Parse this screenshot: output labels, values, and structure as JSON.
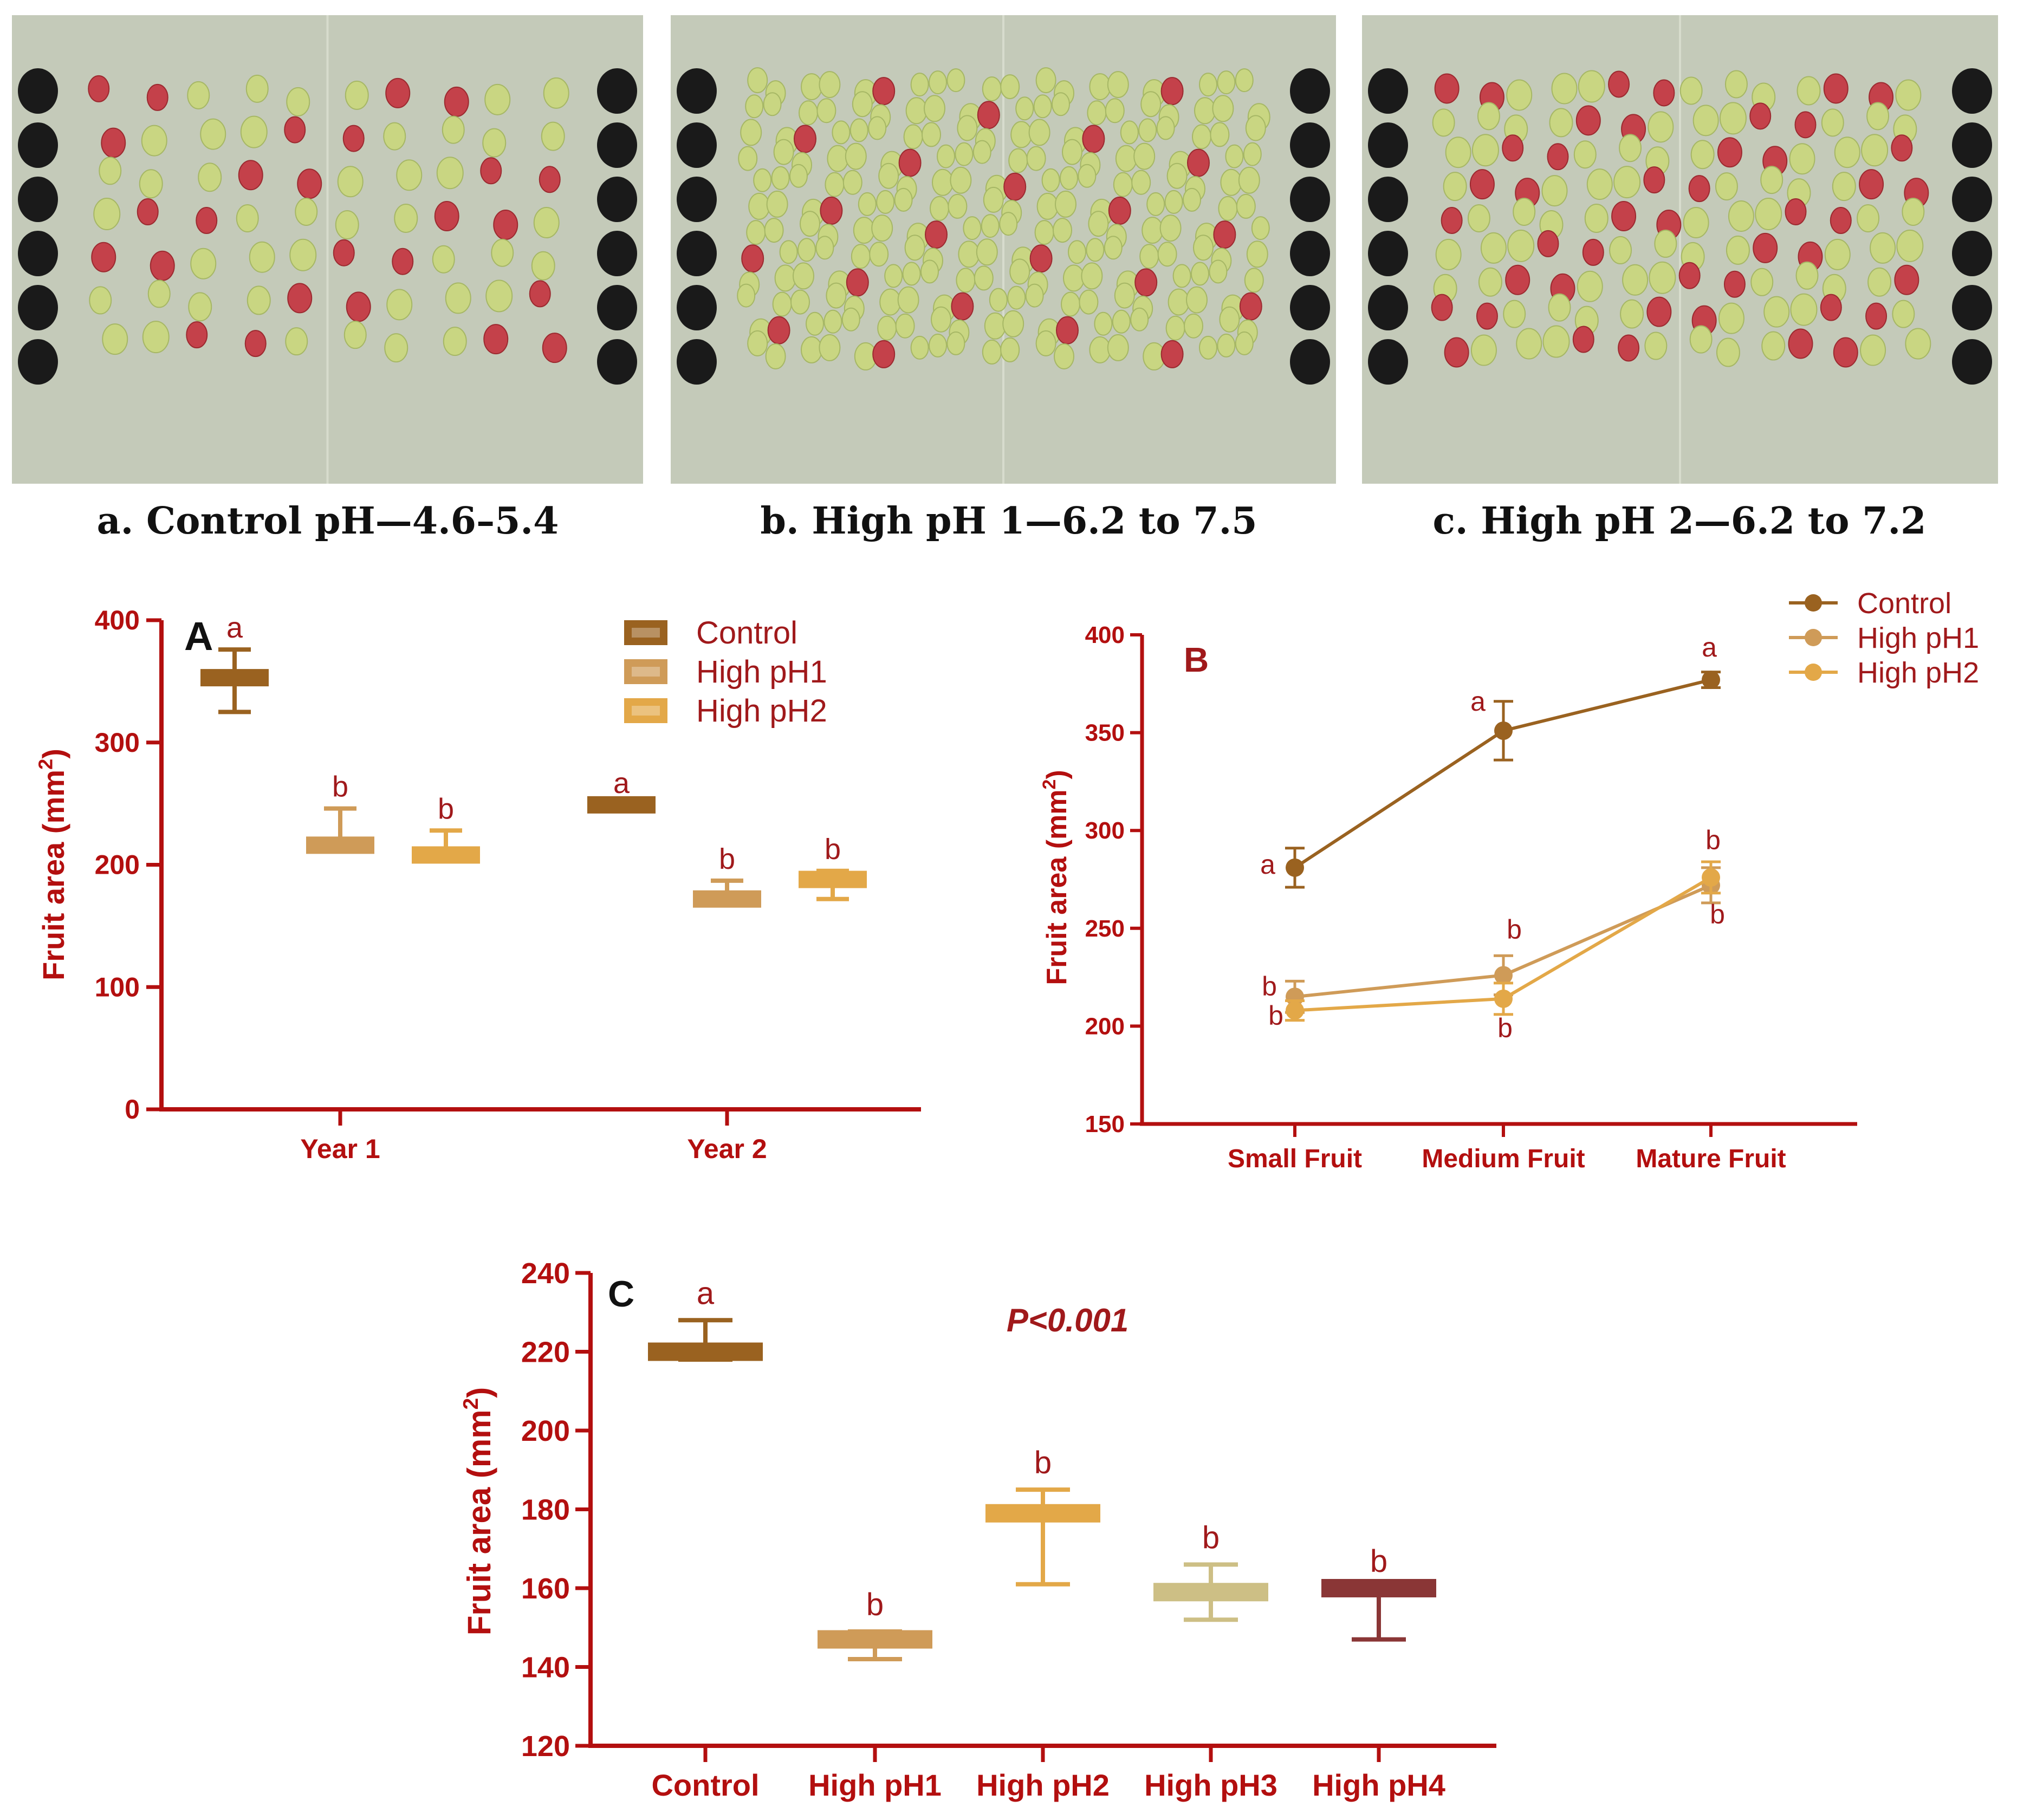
{
  "colors": {
    "axis": "#b30f0f",
    "letter": "#a0191b",
    "panel_letter": "#111111",
    "control": "#9a6220",
    "high_ph1": "#cf9b58",
    "high_ph2": "#e3a848",
    "high_ph3": "#cdbf85",
    "high_ph4": "#8a3636",
    "photo_bg": "#c4cab9",
    "dot": "#1a1a1a"
  },
  "photos": [
    {
      "caption": "a. Control pH—4.6–5.4"
    },
    {
      "caption": "b. High pH 1—6.2 to 7.5"
    },
    {
      "caption": "c. High pH 2—6.2 to 7.2"
    }
  ],
  "chart_data": [
    {
      "panel": "A",
      "type": "bar",
      "ylabel": "Fruit area (mm2)",
      "ylim": [
        0,
        400
      ],
      "yticks": [
        0,
        100,
        200,
        300,
        400
      ],
      "categories": [
        "Year 1",
        "Year  2"
      ],
      "legend_position": "top-right",
      "series": [
        {
          "name": "Control",
          "color": "#9a6220",
          "values": [
            353,
            249
          ],
          "err_high": [
            376,
            249
          ],
          "err_low": [
            325,
            249
          ],
          "letters": [
            "a",
            "a"
          ]
        },
        {
          "name": "High pH1",
          "color": "#cf9b58",
          "values": [
            216,
            172
          ],
          "err_high": [
            246,
            187
          ],
          "err_low": [
            216,
            170
          ],
          "letters": [
            "b",
            "b"
          ]
        },
        {
          "name": "High pH2",
          "color": "#e3a848",
          "values": [
            208,
            188
          ],
          "err_high": [
            228,
            195
          ],
          "err_low": [
            208,
            172
          ],
          "letters": [
            "b",
            "b"
          ]
        }
      ]
    },
    {
      "panel": "B",
      "type": "line",
      "ylabel": "Fruit area (mm2)",
      "ylim": [
        150,
        400
      ],
      "yticks": [
        150,
        200,
        250,
        300,
        350,
        400
      ],
      "categories": [
        "Small Fruit",
        "Medium Fruit",
        "Mature Fruit"
      ],
      "legend_position": "top-right",
      "series": [
        {
          "name": "Control",
          "color": "#9a6220",
          "values": [
            281,
            351,
            377
          ],
          "err": [
            10,
            15,
            4
          ],
          "letters": [
            "a",
            "a",
            "a"
          ]
        },
        {
          "name": "High pH1",
          "color": "#cf9b58",
          "values": [
            215,
            226,
            272
          ],
          "err": [
            8,
            10,
            9
          ],
          "letters": [
            "b",
            "b",
            "b"
          ]
        },
        {
          "name": "High pH2",
          "color": "#e3a848",
          "values": [
            208,
            214,
            276
          ],
          "err": [
            5,
            8,
            8
          ],
          "letters": [
            "b",
            "b",
            "b"
          ]
        }
      ]
    },
    {
      "panel": "C",
      "type": "bar",
      "ylabel": "Fruit area (mm2)",
      "annotation": "P<0.001",
      "ylim": [
        120,
        240
      ],
      "yticks": [
        120,
        140,
        160,
        180,
        200,
        220,
        240
      ],
      "categories": [
        "Control",
        "High pH1",
        "High pH2",
        "High pH3",
        "High pH4"
      ],
      "series": [
        {
          "name": "",
          "values": [
            220,
            147,
            179,
            159,
            160
          ],
          "err_high": [
            228,
            149,
            185,
            166,
            160
          ],
          "err_low": [
            218,
            142,
            161,
            152,
            147
          ],
          "colors": [
            "#9a6220",
            "#cf9b58",
            "#e3a848",
            "#cdbf85",
            "#8a3636"
          ],
          "letters": [
            "a",
            "b",
            "b",
            "b",
            "b"
          ]
        }
      ]
    }
  ]
}
